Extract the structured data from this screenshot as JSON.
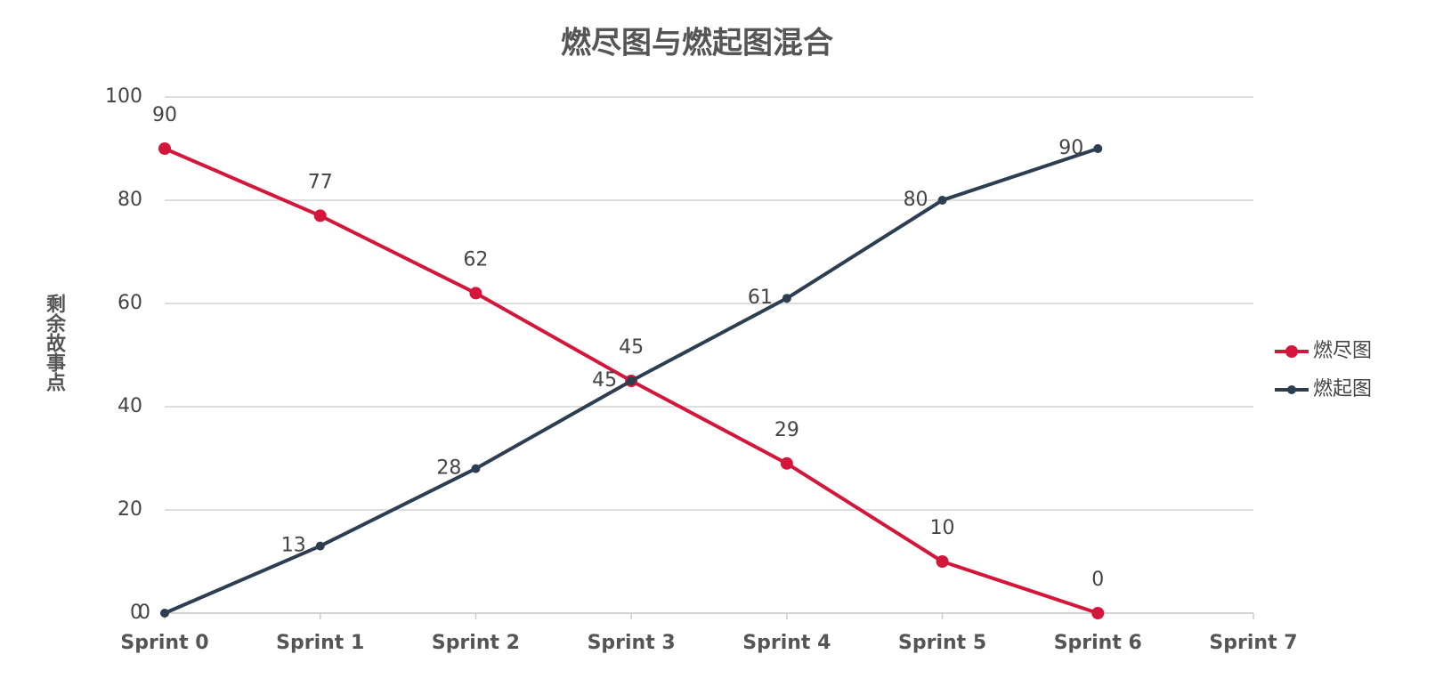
{
  "chart_data": {
    "type": "line",
    "title": "燃尽图与燃起图混合",
    "y_label": "剩余故事点",
    "categories": [
      "Sprint 0",
      "Sprint 1",
      "Sprint 2",
      "Sprint 3",
      "Sprint 4",
      "Sprint 5",
      "Sprint 6",
      "Sprint 7"
    ],
    "series": [
      {
        "name": "燃尽图",
        "color": "#d31639",
        "values": [
          90,
          77,
          62,
          45,
          29,
          10,
          0,
          null
        ]
      },
      {
        "name": "燃起图",
        "color": "#2c3e50",
        "values": [
          0,
          13,
          28,
          45,
          61,
          80,
          90,
          null
        ]
      }
    ],
    "ylim": [
      0,
      100
    ],
    "yticks": [
      0,
      20,
      40,
      60,
      80,
      100
    ],
    "grid": true,
    "legend": "right"
  }
}
